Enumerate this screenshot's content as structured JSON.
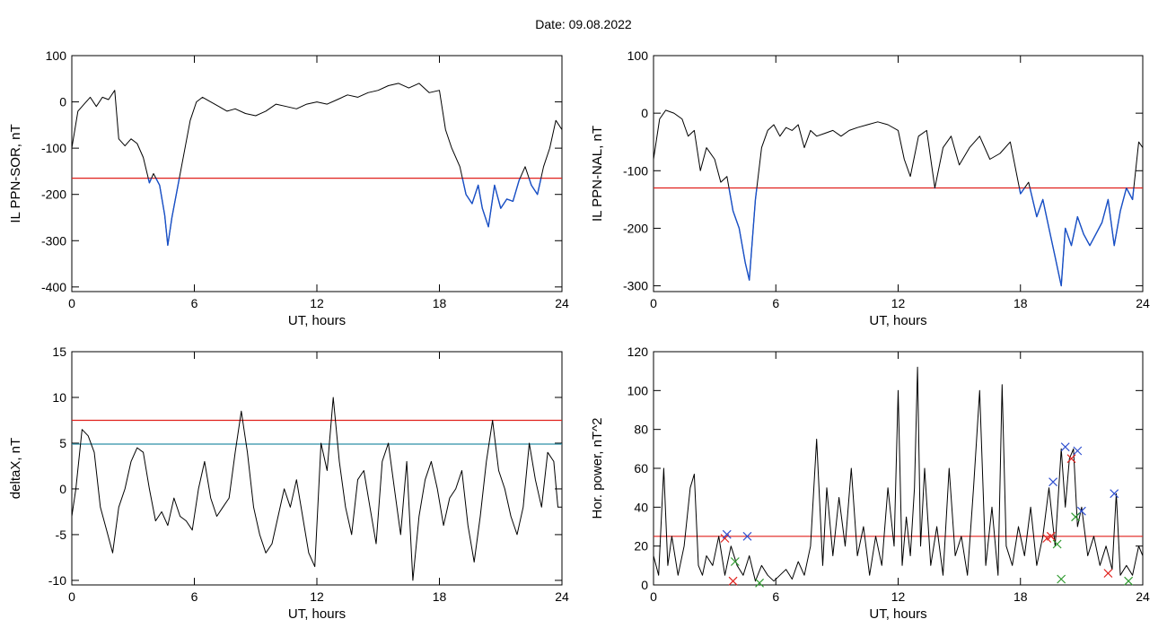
{
  "header": {
    "title": "Date:  09.08.2022"
  },
  "chart_data": [
    {
      "type": "line",
      "id": "il-sor",
      "xlabel": "UT, hours",
      "ylabel": "IL PPN-SOR, nT",
      "xlim": [
        0,
        24
      ],
      "ylim": [
        -410,
        100
      ],
      "xticks": [
        0,
        6,
        12,
        18,
        24
      ],
      "yticks": [
        -400,
        -300,
        -200,
        -100,
        0,
        100
      ],
      "threshold": {
        "value": -165,
        "color": "#e0201c"
      },
      "below_color": "#1850c8",
      "line_color": "#000000",
      "series": [
        {
          "x": [
            0,
            0.3,
            0.6,
            0.9,
            1.2,
            1.5,
            1.8,
            2.1,
            2.3,
            2.6,
            2.9,
            3.2,
            3.5,
            3.8,
            4.0,
            4.3,
            4.55,
            4.7,
            4.9,
            5.2,
            5.5,
            5.8,
            6.1,
            6.4,
            6.8,
            7.2,
            7.6,
            8.0,
            8.5,
            9.0,
            9.5,
            10.0,
            10.5,
            11.0,
            11.5,
            12.0,
            12.5,
            13.0,
            13.5,
            14.0,
            14.5,
            15.0,
            15.5,
            16.0,
            16.5,
            17.0,
            17.5,
            18.0,
            18.3,
            18.6,
            19.0,
            19.3,
            19.6,
            19.9,
            20.1,
            20.4,
            20.7,
            21.0,
            21.3,
            21.6,
            21.9,
            22.2,
            22.5,
            22.8,
            23.1,
            23.4,
            23.7,
            24.0
          ],
          "y": [
            -100,
            -20,
            -5,
            10,
            -10,
            10,
            5,
            25,
            -80,
            -95,
            -80,
            -90,
            -120,
            -175,
            -155,
            -180,
            -245,
            -310,
            -250,
            -180,
            -110,
            -40,
            0,
            10,
            0,
            -10,
            -20,
            -15,
            -25,
            -30,
            -20,
            -5,
            -10,
            -15,
            -5,
            0,
            -5,
            5,
            15,
            10,
            20,
            25,
            35,
            40,
            30,
            40,
            20,
            25,
            -60,
            -100,
            -140,
            -200,
            -220,
            -180,
            -230,
            -270,
            -180,
            -230,
            -210,
            -215,
            -170,
            -140,
            -180,
            -200,
            -140,
            -100,
            -40,
            -60
          ]
        }
      ]
    },
    {
      "type": "line",
      "id": "il-nal",
      "xlabel": "UT, hours",
      "ylabel": "IL PPN-NAL, nT",
      "xlim": [
        0,
        24
      ],
      "ylim": [
        -310,
        100
      ],
      "xticks": [
        0,
        6,
        12,
        18,
        24
      ],
      "yticks": [
        -300,
        -200,
        -100,
        0,
        100
      ],
      "threshold": {
        "value": -130,
        "color": "#e0201c"
      },
      "below_color": "#1850c8",
      "line_color": "#000000",
      "series": [
        {
          "x": [
            0,
            0.3,
            0.6,
            1.0,
            1.4,
            1.7,
            2.0,
            2.3,
            2.6,
            3.0,
            3.3,
            3.6,
            3.9,
            4.2,
            4.5,
            4.7,
            5.0,
            5.3,
            5.6,
            5.9,
            6.2,
            6.5,
            6.8,
            7.1,
            7.4,
            7.7,
            8.0,
            8.4,
            8.8,
            9.2,
            9.6,
            10.0,
            10.5,
            11.0,
            11.5,
            12.0,
            12.3,
            12.6,
            13.0,
            13.4,
            13.8,
            14.2,
            14.6,
            15.0,
            15.5,
            16.0,
            16.5,
            17.0,
            17.5,
            18.0,
            18.4,
            18.8,
            19.1,
            19.4,
            19.7,
            20.0,
            20.2,
            20.5,
            20.8,
            21.1,
            21.4,
            21.7,
            22.0,
            22.3,
            22.6,
            22.9,
            23.2,
            23.5,
            23.8,
            24.0
          ],
          "y": [
            -80,
            -10,
            5,
            0,
            -10,
            -40,
            -30,
            -100,
            -60,
            -80,
            -120,
            -110,
            -170,
            -200,
            -260,
            -290,
            -150,
            -60,
            -30,
            -20,
            -40,
            -25,
            -30,
            -20,
            -60,
            -30,
            -40,
            -35,
            -30,
            -40,
            -30,
            -25,
            -20,
            -15,
            -20,
            -30,
            -80,
            -110,
            -40,
            -30,
            -130,
            -60,
            -40,
            -90,
            -60,
            -40,
            -80,
            -70,
            -50,
            -140,
            -120,
            -180,
            -150,
            -200,
            -250,
            -300,
            -200,
            -230,
            -180,
            -210,
            -230,
            -210,
            -190,
            -150,
            -230,
            -170,
            -130,
            -150,
            -50,
            -60
          ]
        }
      ]
    },
    {
      "type": "line",
      "id": "deltax",
      "xlabel": "UT, hours",
      "ylabel": "deltaX, nT",
      "xlim": [
        0,
        24
      ],
      "ylim": [
        -10.5,
        15
      ],
      "xticks": [
        0,
        6,
        12,
        18,
        24
      ],
      "yticks": [
        -10,
        -5,
        0,
        5,
        10,
        15
      ],
      "thresholds": [
        {
          "value": 7.5,
          "color": "#e0201c"
        },
        {
          "value": 4.9,
          "color": "#2f8fa8"
        }
      ],
      "line_color": "#000000",
      "series": [
        {
          "x": [
            0,
            0.2,
            0.5,
            0.8,
            1.1,
            1.4,
            1.7,
            2.0,
            2.3,
            2.6,
            2.9,
            3.2,
            3.5,
            3.8,
            4.1,
            4.4,
            4.7,
            5.0,
            5.3,
            5.6,
            5.9,
            6.2,
            6.5,
            6.8,
            7.1,
            7.4,
            7.7,
            8.0,
            8.3,
            8.6,
            8.9,
            9.2,
            9.5,
            9.8,
            10.1,
            10.4,
            10.7,
            11.0,
            11.3,
            11.6,
            11.9,
            12.2,
            12.5,
            12.8,
            13.1,
            13.4,
            13.7,
            14.0,
            14.3,
            14.6,
            14.9,
            15.2,
            15.5,
            15.8,
            16.1,
            16.4,
            16.7,
            17.0,
            17.3,
            17.6,
            17.9,
            18.2,
            18.5,
            18.8,
            19.1,
            19.4,
            19.7,
            20.0,
            20.3,
            20.6,
            20.9,
            21.2,
            21.5,
            21.8,
            22.1,
            22.4,
            22.7,
            23.0,
            23.3,
            23.6,
            23.8,
            24.0
          ],
          "y": [
            -3,
            0,
            6.5,
            5.8,
            4,
            -2,
            -4.5,
            -7,
            -2,
            0,
            3,
            4.5,
            4,
            0,
            -3.5,
            -2.5,
            -4,
            -1,
            -3,
            -3.5,
            -4.5,
            0,
            3,
            -1,
            -3,
            -2,
            -1,
            4,
            8.5,
            4,
            -2,
            -5,
            -7,
            -6,
            -3,
            0,
            -2,
            1,
            -3,
            -7,
            -8.5,
            5,
            2,
            10,
            3,
            -2,
            -5,
            1,
            2,
            -2,
            -6,
            3,
            5,
            0,
            -5,
            3,
            -10,
            -3,
            1,
            3,
            0,
            -4,
            -1,
            0,
            2,
            -4,
            -8,
            -3,
            3,
            7.5,
            2,
            0,
            -3,
            -5,
            -2,
            5,
            1,
            -2,
            4,
            3,
            -2,
            -2
          ]
        }
      ]
    },
    {
      "type": "line",
      "id": "hor-power",
      "xlabel": "UT, hours",
      "ylabel": "Hor. power, nT^2",
      "xlim": [
        0,
        24
      ],
      "ylim": [
        0,
        120
      ],
      "xticks": [
        0,
        6,
        12,
        18,
        24
      ],
      "yticks": [
        0,
        20,
        40,
        60,
        80,
        100,
        120
      ],
      "threshold": {
        "value": 25,
        "color": "#e0201c"
      },
      "line_color": "#000000",
      "series": [
        {
          "x": [
            0,
            0.25,
            0.5,
            0.7,
            0.9,
            1.2,
            1.5,
            1.8,
            2.0,
            2.2,
            2.4,
            2.6,
            2.9,
            3.2,
            3.5,
            3.8,
            4.1,
            4.4,
            4.7,
            5.0,
            5.3,
            5.6,
            5.9,
            6.2,
            6.5,
            6.8,
            7.1,
            7.4,
            7.7,
            8.0,
            8.3,
            8.5,
            8.8,
            9.1,
            9.4,
            9.7,
            10.0,
            10.3,
            10.6,
            10.9,
            11.2,
            11.5,
            11.8,
            12.0,
            12.2,
            12.4,
            12.6,
            12.8,
            12.95,
            13.1,
            13.3,
            13.6,
            13.9,
            14.2,
            14.5,
            14.8,
            15.1,
            15.4,
            15.7,
            16.0,
            16.3,
            16.6,
            16.9,
            17.1,
            17.3,
            17.6,
            17.9,
            18.2,
            18.5,
            18.8,
            19.1,
            19.4,
            19.7,
            20.0,
            20.2,
            20.4,
            20.6,
            20.8,
            21.0,
            21.3,
            21.6,
            21.9,
            22.2,
            22.5,
            22.7,
            22.9,
            23.2,
            23.5,
            23.8,
            24.0
          ],
          "y": [
            15,
            5,
            60,
            10,
            25,
            5,
            20,
            50,
            57,
            10,
            5,
            15,
            10,
            25,
            5,
            20,
            10,
            5,
            15,
            2,
            10,
            5,
            2,
            5,
            8,
            3,
            12,
            5,
            20,
            75,
            10,
            50,
            15,
            45,
            20,
            60,
            15,
            30,
            5,
            25,
            10,
            50,
            20,
            100,
            10,
            35,
            15,
            50,
            112,
            20,
            60,
            10,
            30,
            5,
            60,
            15,
            25,
            5,
            50,
            100,
            10,
            40,
            5,
            103,
            20,
            10,
            30,
            15,
            40,
            10,
            25,
            50,
            20,
            70,
            40,
            65,
            70,
            30,
            40,
            15,
            25,
            10,
            20,
            8,
            47,
            5,
            10,
            5,
            20,
            15
          ]
        }
      ],
      "markers": [
        {
          "x": 3.5,
          "y": 24,
          "symbol": "x",
          "color": "#e0201c"
        },
        {
          "x": 3.6,
          "y": 26,
          "symbol": "x",
          "color": "#3050d0"
        },
        {
          "x": 4.6,
          "y": 25,
          "symbol": "x",
          "color": "#3050d0"
        },
        {
          "x": 3.9,
          "y": 2,
          "symbol": "x",
          "color": "#e0201c"
        },
        {
          "x": 4.0,
          "y": 12,
          "symbol": "x",
          "color": "#2e9a2e"
        },
        {
          "x": 5.2,
          "y": 1,
          "symbol": "x",
          "color": "#2e9a2e"
        },
        {
          "x": 19.6,
          "y": 53,
          "symbol": "x",
          "color": "#3050d0"
        },
        {
          "x": 20.2,
          "y": 71,
          "symbol": "x",
          "color": "#3050d0"
        },
        {
          "x": 20.8,
          "y": 69,
          "symbol": "x",
          "color": "#3050d0"
        },
        {
          "x": 21.0,
          "y": 38,
          "symbol": "x",
          "color": "#3050d0"
        },
        {
          "x": 22.6,
          "y": 47,
          "symbol": "x",
          "color": "#3050d0"
        },
        {
          "x": 19.3,
          "y": 24,
          "symbol": "x",
          "color": "#e0201c"
        },
        {
          "x": 19.5,
          "y": 25,
          "symbol": "x",
          "color": "#e0201c"
        },
        {
          "x": 20.5,
          "y": 65,
          "symbol": "x",
          "color": "#e0201c"
        },
        {
          "x": 22.3,
          "y": 6,
          "symbol": "x",
          "color": "#e0201c"
        },
        {
          "x": 19.8,
          "y": 21,
          "symbol": "x",
          "color": "#2e9a2e"
        },
        {
          "x": 20.0,
          "y": 3,
          "symbol": "x",
          "color": "#2e9a2e"
        },
        {
          "x": 20.7,
          "y": 35,
          "symbol": "x",
          "color": "#2e9a2e"
        },
        {
          "x": 23.3,
          "y": 2,
          "symbol": "x",
          "color": "#2e9a2e"
        }
      ]
    }
  ]
}
